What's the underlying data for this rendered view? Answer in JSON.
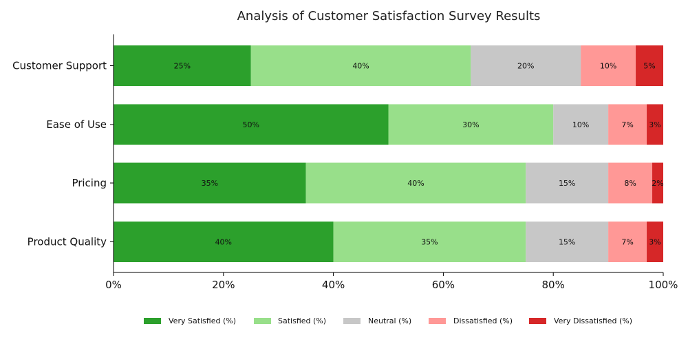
{
  "chart_data": {
    "type": "bar",
    "orientation": "horizontal",
    "stacked": true,
    "title": "Analysis of Customer Satisfaction Survey Results",
    "xlabel": "",
    "ylabel": "",
    "xlim": [
      0,
      100
    ],
    "x_ticks": [
      "0%",
      "20%",
      "40%",
      "60%",
      "80%",
      "100%"
    ],
    "x_tick_values": [
      0,
      20,
      40,
      60,
      80,
      100
    ],
    "categories": [
      "Customer Support",
      "Ease of Use",
      "Pricing",
      "Product Quality"
    ],
    "series": [
      {
        "name": "Very Satisfied (%)",
        "color": "#2ca02c",
        "values": [
          25,
          50,
          35,
          40
        ],
        "labels": [
          "25%",
          "50%",
          "35%",
          "40%"
        ]
      },
      {
        "name": "Satisfied (%)",
        "color": "#98df8a",
        "values": [
          40,
          30,
          40,
          35
        ],
        "labels": [
          "40%",
          "30%",
          "40%",
          "35%"
        ]
      },
      {
        "name": "Neutral (%)",
        "color": "#c7c7c7",
        "values": [
          20,
          10,
          15,
          15
        ],
        "labels": [
          "20%",
          "10%",
          "15%",
          "15%"
        ]
      },
      {
        "name": "Dissatisfied (%)",
        "color": "#ff9896",
        "values": [
          10,
          7,
          8,
          7
        ],
        "labels": [
          "10%",
          "7%",
          "8%",
          "7%"
        ]
      },
      {
        "name": "Very Dissatisfied (%)",
        "color": "#d62728",
        "values": [
          5,
          3,
          2,
          3
        ],
        "labels": [
          "5%",
          "3%",
          "2%",
          "3%"
        ]
      }
    ],
    "grid": false,
    "legend_position": "bottom"
  }
}
